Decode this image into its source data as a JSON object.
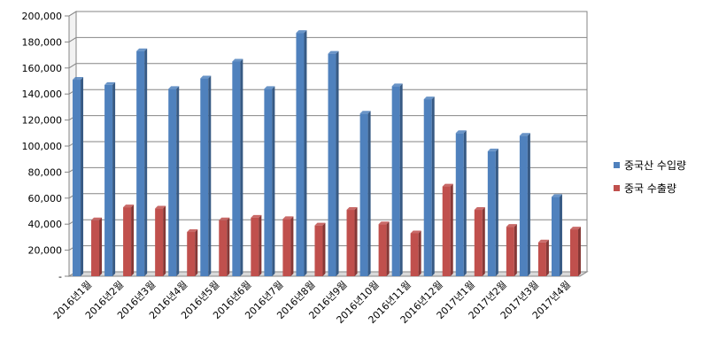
{
  "chart_data": {
    "type": "bar",
    "categories": [
      "2016년1월",
      "2016년2월",
      "2016년3월",
      "2016년4월",
      "2016년5월",
      "2016년6월",
      "2016년7월",
      "2016년8월",
      "2016년9월",
      "2016년10월",
      "2016년11월",
      "2016년12월",
      "2017년1월",
      "2017년2월",
      "2017년3월",
      "2017년4월"
    ],
    "series": [
      {
        "name": "중국산 수입량",
        "color": "#4f81bd",
        "values": [
          151000,
          147000,
          173000,
          144000,
          152000,
          165000,
          144000,
          187000,
          171000,
          125000,
          146000,
          136000,
          110000,
          96000,
          108000,
          61000
        ]
      },
      {
        "name": "중국 수출량",
        "color": "#c0504d",
        "values": [
          43000,
          53000,
          52000,
          34000,
          43000,
          45000,
          44000,
          39000,
          51000,
          40000,
          33000,
          69000,
          51000,
          38000,
          26000,
          36000
        ]
      }
    ],
    "y_ticks": [
      "-",
      "20,000",
      "40,000",
      "60,000",
      "80,000",
      "100,000",
      "120,000",
      "140,000",
      "160,000",
      "180,000",
      "200,000"
    ],
    "ylim": [
      0,
      200000
    ],
    "grid": true,
    "legend_position": "right",
    "title": "",
    "xlabel": "",
    "ylabel": ""
  }
}
